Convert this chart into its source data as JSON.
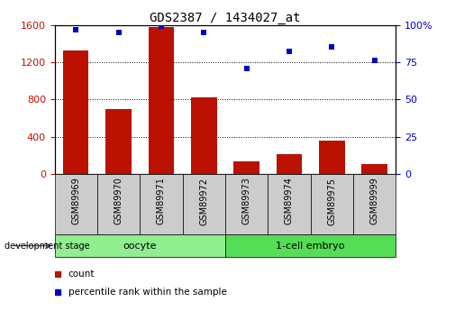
{
  "title": "GDS2387 / 1434027_at",
  "samples": [
    "GSM89969",
    "GSM89970",
    "GSM89971",
    "GSM89972",
    "GSM89973",
    "GSM89974",
    "GSM89975",
    "GSM89999"
  ],
  "counts": [
    1330,
    700,
    1580,
    820,
    140,
    210,
    360,
    110
  ],
  "percentile_ranks": [
    97,
    95,
    99,
    95,
    71,
    82,
    85,
    76
  ],
  "groups": [
    {
      "label": "oocyte",
      "indices": [
        0,
        1,
        2,
        3
      ],
      "color": "#90ee90"
    },
    {
      "label": "1-cell embryo",
      "indices": [
        4,
        5,
        6,
        7
      ],
      "color": "#55dd55"
    }
  ],
  "bar_color": "#bb1100",
  "dot_color": "#0000cc",
  "left_ylim": [
    0,
    1600
  ],
  "right_ylim": [
    0,
    100
  ],
  "left_yticks": [
    0,
    400,
    800,
    1200,
    1600
  ],
  "left_yticklabels": [
    "0",
    "400",
    "800",
    "1200",
    "1600"
  ],
  "right_yticks": [
    0,
    25,
    50,
    75,
    100
  ],
  "right_yticklabels": [
    "0",
    "25",
    "50",
    "75",
    "100%"
  ],
  "bg_color": "#ffffff",
  "sample_box_color": "#cccccc",
  "legend_count_label": "count",
  "legend_pct_label": "percentile rank within the sample",
  "dev_stage_label": "development stage"
}
